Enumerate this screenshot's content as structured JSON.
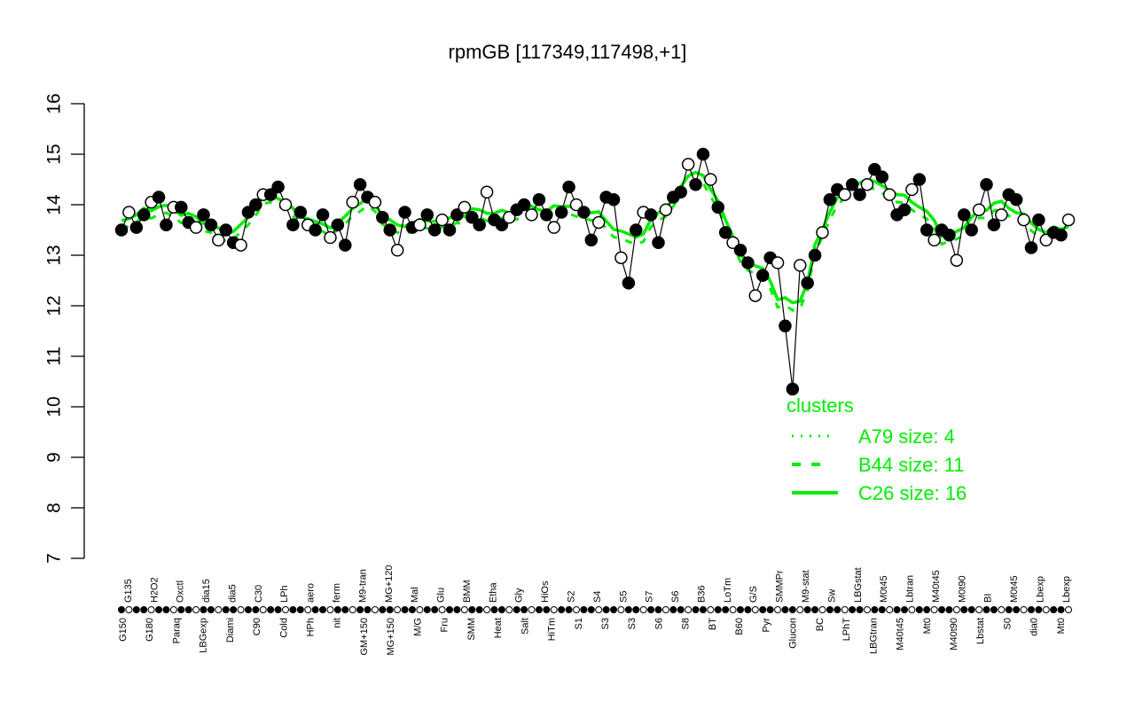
{
  "chart_data": {
    "type": "line",
    "title": "rpmGB [117349,117498,+1]",
    "xlabel": "",
    "ylabel": "",
    "ylim": [
      7,
      16
    ],
    "yticks": [
      7,
      8,
      9,
      10,
      11,
      12,
      13,
      14,
      15,
      16
    ],
    "grid": false,
    "legend": {
      "title": "clusters",
      "position": "right-middle",
      "color": "#00ee00",
      "entries": [
        {
          "label": "A79 size: 4",
          "style": "dotted"
        },
        {
          "label": "B44 size: 11",
          "style": "dashed"
        },
        {
          "label": "C26 size: 16",
          "style": "solid"
        }
      ]
    },
    "x_tick_labels_top": [
      "G135",
      "H2O2",
      "Oxctl",
      "dia15",
      "dia5",
      "C30",
      "LPh",
      "aero",
      "ferm",
      "M9-tran",
      "MG+120",
      "Mal",
      "Glu",
      "BMM",
      "Etha",
      "Gly",
      "HiOs",
      "S2",
      "S4",
      "S5",
      "S7",
      "S6",
      "B36",
      "LoTm",
      "G/S",
      "SMMPr",
      "M9-stat",
      "Sw",
      "LBGstat",
      "M0t45",
      "Lbtran",
      "M40t45",
      "M0t90",
      "BI",
      "M0t45",
      "Lbexp",
      "Lbexp"
    ],
    "x_tick_labels_bottom": [
      "G150",
      "G180",
      "Paraq",
      "LBGexp",
      "Diami",
      "C90",
      "Cold",
      "HPh",
      "nit",
      "GM+150",
      "MG+150",
      "M/G",
      "Fru",
      "SMM",
      "Heat",
      "Salt",
      "HiTm",
      "S1",
      "S3",
      "S3",
      "S6",
      "S8",
      "BT",
      "B60",
      "Pyr",
      "Glucon",
      "BC",
      "LPhT",
      "LBGtran",
      "M40t45",
      "Mt0",
      "M40t90",
      "Lbstat",
      "S0",
      "dia0",
      "Mt0"
    ],
    "series": [
      {
        "name": "expression (black points/line)",
        "x": [
          0,
          1,
          2,
          3,
          4,
          5,
          6,
          7,
          8,
          9,
          10,
          11,
          12,
          13,
          14,
          15,
          16,
          17,
          18,
          19,
          20,
          21,
          22,
          23,
          24,
          25,
          26,
          27,
          28,
          29,
          30,
          31,
          32,
          33,
          34,
          35,
          36,
          37,
          38,
          39,
          40,
          41,
          42,
          43,
          44,
          45,
          46,
          47,
          48,
          49,
          50,
          51,
          52,
          53,
          54,
          55,
          56,
          57,
          58,
          59,
          60,
          61,
          62,
          63,
          64,
          65,
          66,
          67,
          68,
          69,
          70,
          71,
          72,
          73,
          74,
          75,
          76,
          77,
          78,
          79,
          80,
          81,
          82,
          83,
          84,
          85,
          86,
          87,
          88,
          89,
          90,
          91,
          92,
          93,
          94,
          95,
          96,
          97,
          98,
          99
        ],
        "values": [
          13.5,
          13.85,
          13.55,
          13.8,
          14.05,
          14.15,
          13.6,
          13.95,
          13.95,
          13.65,
          13.55,
          13.8,
          13.6,
          13.3,
          13.5,
          13.25,
          13.2,
          13.85,
          14.0,
          14.2,
          14.2,
          14.35,
          14.0,
          13.6,
          13.85,
          13.6,
          13.5,
          13.8,
          13.35,
          13.6,
          13.2,
          14.05,
          14.4,
          14.15,
          14.05,
          13.75,
          13.5,
          13.1,
          13.85,
          13.55,
          13.6,
          13.8,
          13.5,
          13.7,
          13.5,
          13.8,
          13.95,
          13.75,
          13.6,
          14.25,
          13.7,
          13.6,
          13.75,
          13.9,
          14.0,
          13.8,
          14.1,
          13.8,
          13.55,
          13.85,
          14.35,
          14.0,
          13.85,
          13.3,
          13.65,
          14.15,
          14.1,
          12.95,
          12.45,
          13.5,
          13.85,
          13.8,
          13.25,
          13.9,
          14.15,
          14.25,
          14.8,
          14.4,
          15.0,
          14.5,
          13.95,
          13.45,
          13.25,
          13.1,
          12.85,
          12.2,
          12.6,
          12.95,
          12.85,
          11.6,
          10.35,
          12.8,
          12.45,
          13.0,
          13.45,
          14.1,
          14.3,
          14.2,
          14.4,
          14.2
        ]
      },
      {
        "name": "cluster mean (green)",
        "x": [
          0,
          10,
          20,
          30,
          40,
          50,
          60,
          70,
          78,
          85,
          90,
          92,
          95,
          100,
          110,
          120,
          130,
          140,
          150,
          160,
          170
        ],
        "values": [
          13.6,
          13.3,
          14.0,
          13.5,
          13.7,
          13.75,
          13.8,
          13.7,
          14.45,
          12.7,
          11.7,
          11.5,
          12.8,
          14.1,
          14.0,
          13.5,
          14.3,
          13.4,
          14.4,
          13.5,
          13.3
        ]
      }
    ],
    "right_region_values": [
      14.4,
      14.7,
      14.55,
      14.2,
      13.8,
      13.9,
      14.3,
      14.5,
      13.5,
      13.3,
      13.5,
      13.4,
      12.9,
      13.8,
      13.5,
      13.9,
      14.4,
      13.6,
      13.8,
      14.2,
      14.1,
      13.7,
      13.15,
      13.7,
      13.3,
      13.45,
      13.4,
      13.7
    ]
  }
}
